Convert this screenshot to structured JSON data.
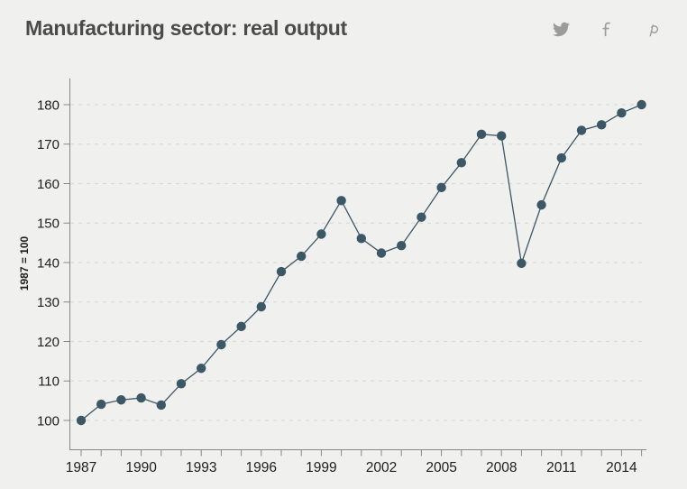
{
  "header": {
    "title": "Manufacturing sector: real output",
    "social_icons": [
      "twitter-icon",
      "facebook-icon",
      "pinterest-icon"
    ]
  },
  "colors": {
    "background": "#f0f0ee",
    "title": "#4b4b4b",
    "line": "#3c5765",
    "marker": "#3c5765",
    "grid": "#d9d9d6",
    "axis": "#878787",
    "tick_label": "#1f1f1f",
    "icon": "#9c9c9c"
  },
  "chart_data": {
    "type": "line",
    "title": "Manufacturing sector: real output",
    "xlabel": "",
    "ylabel": "1987 = 100",
    "x": [
      1987,
      1988,
      1989,
      1990,
      1991,
      1992,
      1993,
      1994,
      1995,
      1996,
      1997,
      1998,
      1999,
      2000,
      2001,
      2002,
      2003,
      2004,
      2005,
      2006,
      2007,
      2008,
      2009,
      2010,
      2011,
      2012,
      2013,
      2014,
      2015
    ],
    "values": [
      100,
      104.1,
      105.2,
      105.7,
      103.9,
      109.3,
      113.2,
      119.2,
      123.8,
      128.8,
      137.7,
      141.6,
      147.2,
      155.7,
      146.1,
      142.4,
      144.3,
      151.5,
      159.0,
      165.3,
      172.5,
      172.1,
      139.8,
      154.6,
      166.5,
      173.5,
      174.9,
      177.9,
      180.0
    ],
    "yticks": [
      100,
      110,
      120,
      130,
      140,
      150,
      160,
      170,
      180
    ],
    "xtick_labels": [
      1987,
      1990,
      1993,
      1996,
      1999,
      2002,
      2005,
      2008,
      2011,
      2014
    ],
    "ylim": [
      93,
      187
    ],
    "grid": "horizontal-dashed",
    "marker": "circle",
    "legend": "none"
  }
}
